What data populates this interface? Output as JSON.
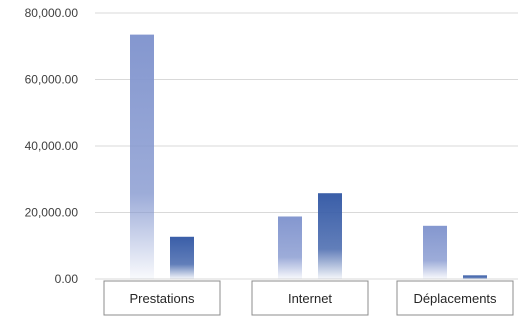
{
  "chart_data": {
    "type": "bar",
    "categories": [
      "Prestations",
      "Internet",
      "Déplacements"
    ],
    "series": [
      {
        "values": [
          73500,
          18800,
          16000
        ],
        "color": "#8497cf"
      },
      {
        "values": [
          12700,
          25800,
          1100
        ],
        "color": "#3a5ea8"
      }
    ],
    "y_ticks": [
      "0.00",
      "20,000.00",
      "40,000.00",
      "60,000.00",
      "80,000.00"
    ],
    "ylim": [
      0,
      80000
    ],
    "grid": true,
    "legend": "none",
    "title": "",
    "xlabel": "",
    "ylabel": ""
  }
}
